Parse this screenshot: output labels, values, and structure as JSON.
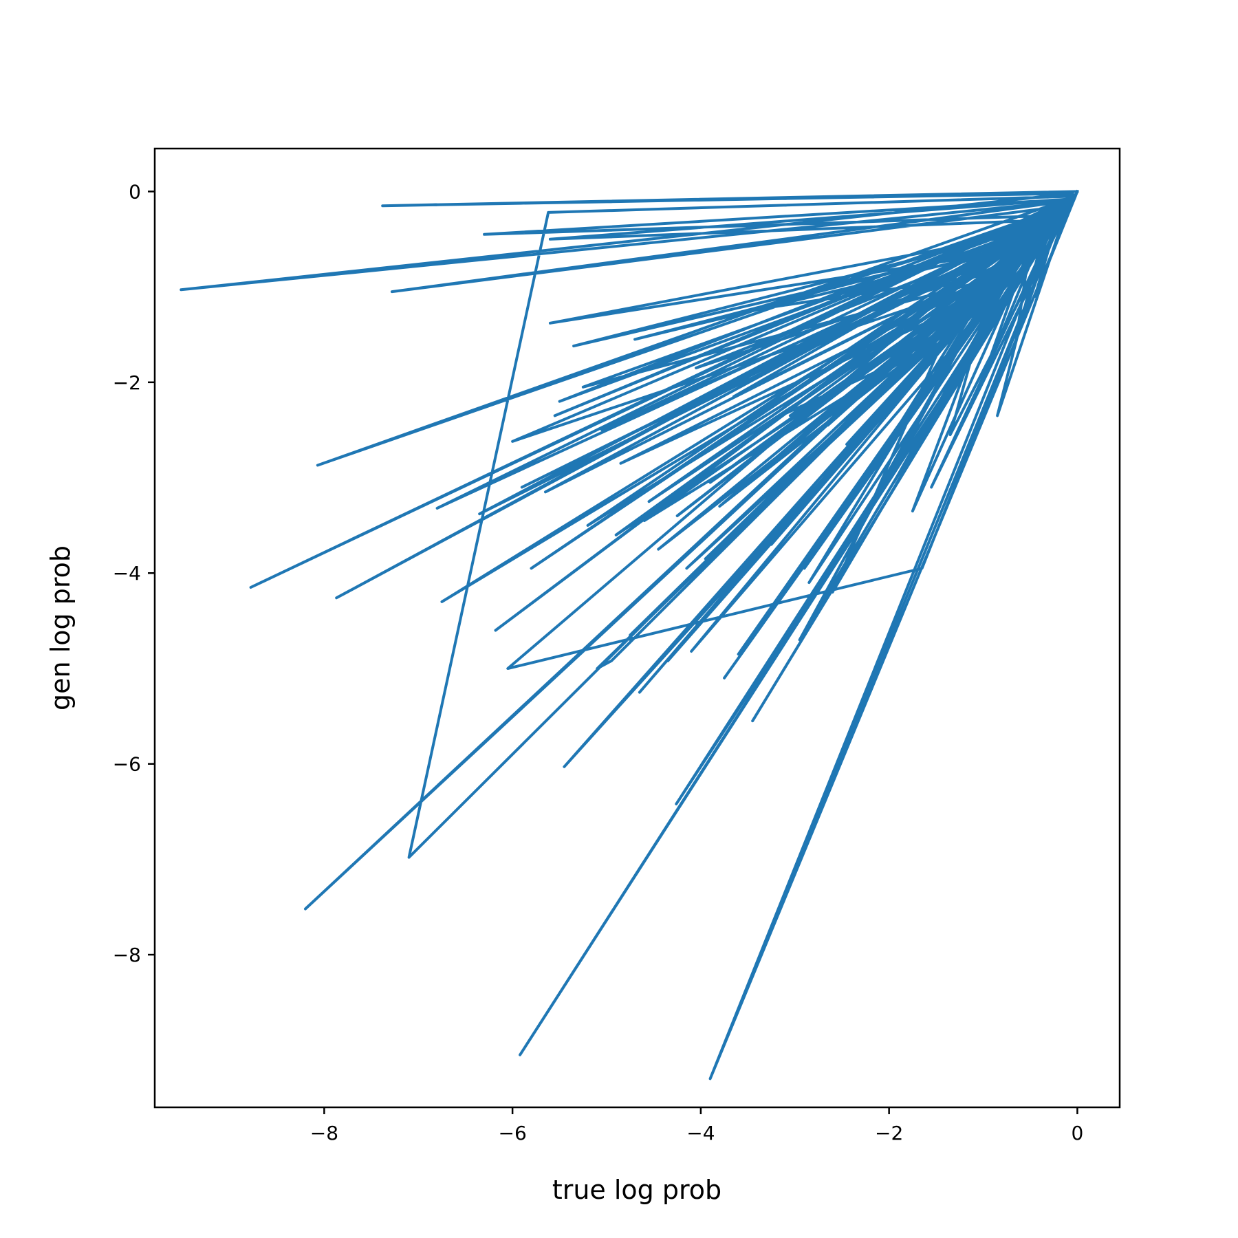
{
  "chart_data": {
    "type": "line",
    "title": "",
    "xlabel": "true log prob",
    "ylabel": "gen log prob",
    "xlim": [
      -9.8,
      0.45
    ],
    "ylim": [
      -9.6,
      0.45
    ],
    "x_ticks": [
      {
        "value": -8,
        "label": "−8"
      },
      {
        "value": -6,
        "label": "−6"
      },
      {
        "value": -4,
        "label": "−4"
      },
      {
        "value": -2,
        "label": "−2"
      },
      {
        "value": 0,
        "label": "0"
      }
    ],
    "y_ticks": [
      {
        "value": 0,
        "label": "0"
      },
      {
        "value": -2,
        "label": "−2"
      },
      {
        "value": -4,
        "label": "−4"
      },
      {
        "value": -6,
        "label": "−6"
      },
      {
        "value": -8,
        "label": "−8"
      }
    ],
    "grid": false,
    "legend": "none",
    "color": "#1f77b4",
    "series": [
      {
        "x": [
          0.0,
          -7.38,
          -0.05,
          -9.52,
          -0.1,
          -3.9,
          -0.02,
          -8.07,
          -0.12,
          -5.92,
          -0.05,
          -8.2,
          -0.2,
          -3.9,
          -0.1,
          -7.1,
          -5.62,
          -0.05,
          -8.78,
          -0.15,
          -4.26,
          -0.02,
          -6.18,
          -0.08,
          -7.87,
          -0.3,
          -4.65,
          -0.4,
          -5.45,
          -0.2,
          -6.75,
          -0.5,
          -5.1,
          -4.95,
          -0.15,
          -3.45,
          -0.25,
          -6.8,
          -0.35,
          -6.05,
          -1.65,
          -0.1,
          -7.28,
          -0.12,
          -5.8,
          -0.2,
          -6.3,
          -0.08,
          -5.6,
          -0.3,
          -3.75,
          -0.18,
          -2.9,
          -0.5,
          -6.35,
          -0.05,
          -5.55,
          -0.22,
          -4.1,
          -0.15,
          -5.9,
          -0.4,
          -4.75,
          -0.6,
          -5.2,
          -0.25,
          -3.6,
          -0.8,
          -6.0,
          -0.1,
          -4.35,
          -0.45,
          -5.35,
          -0.3,
          -3.95,
          -0.7,
          -4.85,
          -1.0,
          -4.45,
          -0.55,
          -5.6,
          -0.35,
          -2.95,
          -0.9,
          -4.9,
          -0.2,
          -5.65,
          -0.6,
          -4.15,
          -1.2,
          -3.8,
          -0.15,
          -5.05,
          -0.4,
          -3.25,
          -0.75,
          -4.6,
          -1.4,
          -2.6,
          -0.3,
          -3.55,
          -0.05,
          -5.5,
          -0.25,
          -4.55,
          -0.65,
          -3.9,
          -0.95,
          -2.85,
          -0.4,
          -4.7,
          -0.5,
          -3.35,
          -0.2,
          -5.25,
          -0.85,
          -2.3,
          -0.1,
          -3.65,
          -0.6,
          -4.25,
          -0.35,
          -2.75,
          -1.5,
          -3.15,
          -0.55,
          -1.95,
          -0.15,
          -2.45,
          -0.7,
          -4.05,
          -0.35,
          -3.05,
          -1.1,
          -2.15,
          -0.45,
          -1.75,
          -0.8,
          -3.5,
          -0.2,
          -1.55,
          -0.05,
          -2.65,
          -0.55,
          -1.85,
          -0.25,
          -2.05,
          -0.9,
          -1.35,
          -0.1,
          -0.85,
          -0.35,
          -1.0,
          -0.5,
          -0.65,
          -0.2,
          -0.45,
          0.0
        ],
        "y": [
          0.0,
          -0.15,
          -0.02,
          -1.03,
          -0.1,
          -9.3,
          -0.05,
          -2.87,
          -0.15,
          -9.05,
          -0.02,
          -7.52,
          -0.2,
          -9.3,
          -0.1,
          -6.98,
          -0.22,
          -0.05,
          -4.15,
          -0.12,
          -6.42,
          -0.03,
          -4.6,
          -0.1,
          -4.26,
          -0.25,
          -5.25,
          -0.4,
          -6.03,
          -0.3,
          -4.3,
          -0.6,
          -5.0,
          -4.92,
          -0.2,
          -5.55,
          -0.35,
          -3.32,
          -0.2,
          -5.0,
          -3.95,
          -0.1,
          -1.05,
          -0.15,
          -3.95,
          -0.25,
          -0.45,
          -0.08,
          -0.5,
          -0.3,
          -5.1,
          -0.15,
          -3.95,
          -0.5,
          -3.38,
          -0.1,
          -2.35,
          -0.2,
          -4.82,
          -0.3,
          -3.1,
          -0.45,
          -4.65,
          -0.7,
          -3.5,
          -0.2,
          -4.85,
          -0.9,
          -2.62,
          -0.15,
          -4.92,
          -0.5,
          -1.62,
          -0.35,
          -3.85,
          -0.8,
          -2.85,
          -1.1,
          -3.75,
          -0.6,
          -1.38,
          -0.4,
          -4.7,
          -1.0,
          -3.6,
          -0.25,
          -3.15,
          -0.65,
          -3.95,
          -1.3,
          -3.3,
          -0.2,
          -2.5,
          -0.45,
          -3.7,
          -0.8,
          -3.45,
          -1.5,
          -4.2,
          -0.35,
          -3.95,
          -0.1,
          -2.2,
          -0.3,
          -3.25,
          -0.7,
          -3.05,
          -1.0,
          -4.1,
          -0.45,
          -1.55,
          -0.55,
          -2.95,
          -0.25,
          -2.05,
          -0.9,
          -3.45,
          -0.15,
          -2.15,
          -0.65,
          -3.4,
          -0.4,
          -2.75,
          -1.6,
          -2.35,
          -0.6,
          -3.05,
          -0.2,
          -2.65,
          -0.75,
          -1.85,
          -0.4,
          -2.35,
          -1.2,
          -2.85,
          -0.5,
          -3.35,
          -0.85,
          -1.25,
          -0.25,
          -3.1,
          -0.08,
          -2.45,
          -0.6,
          -2.95,
          -0.3,
          -2.05,
          -0.95,
          -2.55,
          -0.15,
          -2.35,
          -0.4,
          -1.95,
          -0.55,
          -1.55,
          -0.25,
          -1.1,
          0.0
        ]
      }
    ]
  }
}
